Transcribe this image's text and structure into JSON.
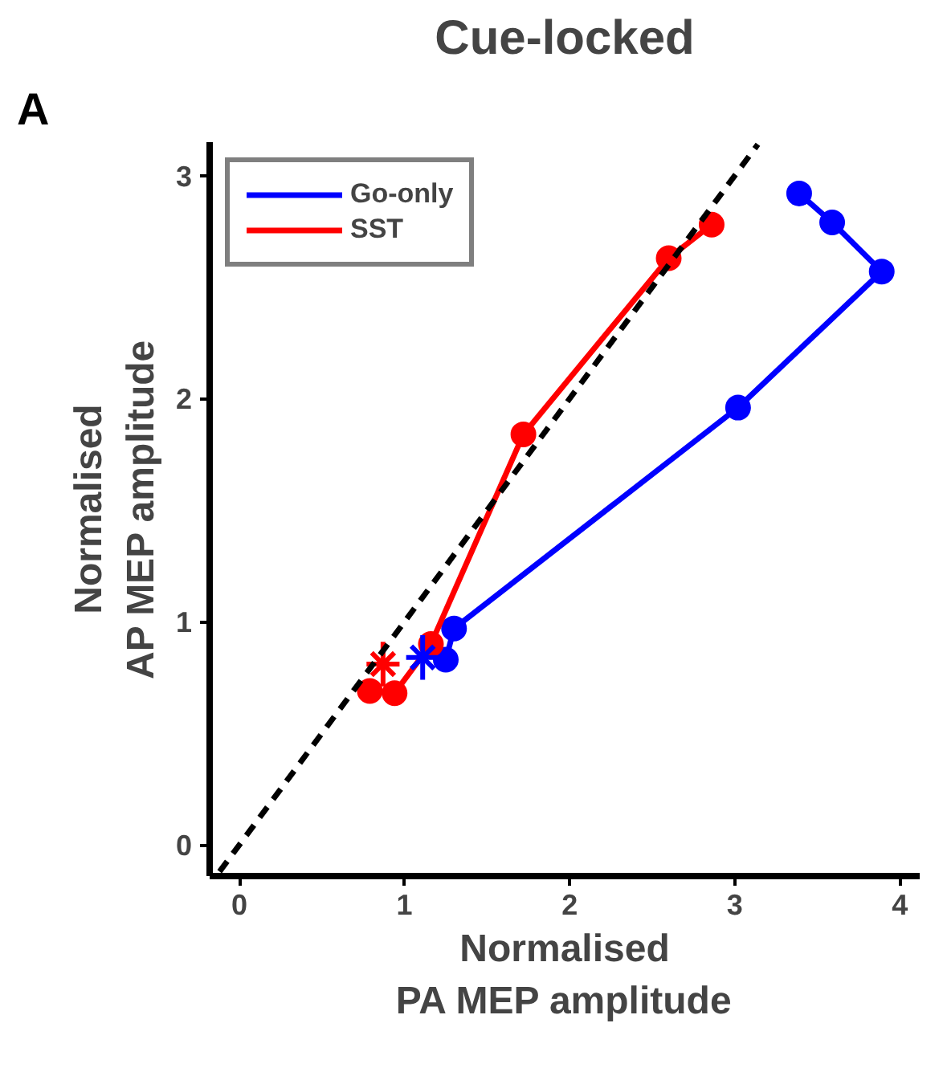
{
  "chart_data": {
    "type": "line",
    "title": "Cue-locked",
    "xlabel": "Normalised\nPA MEP amplitude",
    "ylabel": "Normalised\nAP MEP amplitude",
    "annotations": [
      "A"
    ],
    "series": [
      {
        "name": "Go-only",
        "color": "#0000ff",
        "marker": "circle",
        "x": [
          1.25,
          1.3,
          3.02,
          3.89,
          3.59,
          3.39
        ],
        "values": [
          0.83,
          0.97,
          1.96,
          2.57,
          2.79,
          2.92
        ]
      },
      {
        "name": "SST",
        "color": "#ff0000",
        "marker": "circle",
        "x": [
          0.79,
          0.94,
          1.16,
          1.72,
          2.6,
          2.86
        ],
        "values": [
          0.69,
          0.68,
          0.9,
          1.84,
          2.63,
          2.78
        ]
      },
      {
        "type": "scatter",
        "color": "#0000ff",
        "marker": "cross",
        "x": [
          1.11
        ],
        "values": [
          0.84
        ],
        "errors": [
          0.1
        ],
        "xerrors": [
          0.1
        ]
      },
      {
        "type": "scatter",
        "color": "#ff0000",
        "marker": "cross",
        "x": [
          0.87
        ],
        "values": [
          0.81
        ],
        "errors": [
          0.1
        ],
        "xerrors": [
          0.1
        ]
      },
      {
        "type": "line",
        "color": "#000000",
        "line_style": "dashed",
        "marker": "none",
        "x": [
          -0.12,
          3.14
        ],
        "values": [
          -0.12,
          3.14
        ]
      }
    ],
    "xlim": [
      -0.18,
      4.12
    ],
    "ylim": [
      -0.14,
      3.15
    ],
    "xticks": [
      0,
      1,
      2,
      3,
      4
    ],
    "yticks": [
      0,
      1,
      2,
      3
    ],
    "grid": false,
    "legend": "top left"
  }
}
